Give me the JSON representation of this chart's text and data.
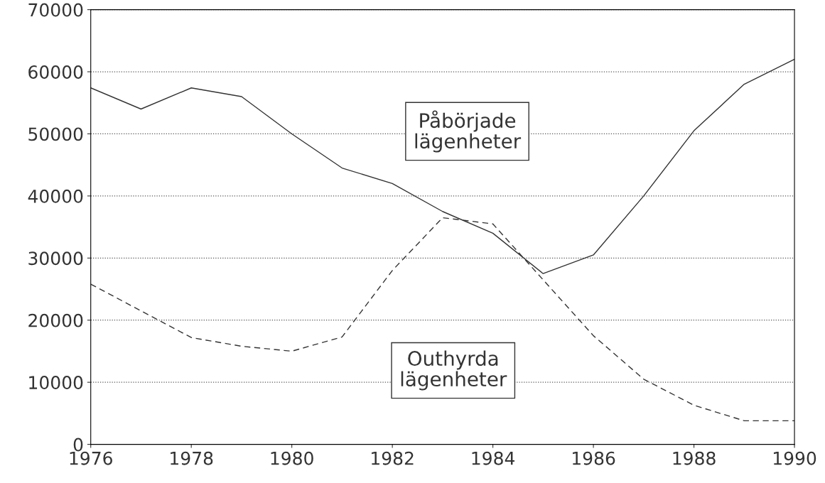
{
  "chart_data": {
    "type": "line",
    "x": [
      1976,
      1977,
      1978,
      1979,
      1980,
      1981,
      1982,
      1983,
      1984,
      1985,
      1986,
      1987,
      1988,
      1989,
      1990
    ],
    "series": [
      {
        "name": "Påbörjade\nlägenheter",
        "color": "#333333",
        "line_style": "solid",
        "values": [
          57400,
          54000,
          57400,
          56000,
          50000,
          44500,
          42000,
          37500,
          34000,
          27500,
          30500,
          40000,
          50500,
          58000,
          62000
        ]
      },
      {
        "name": "Outhyrda\nlägenheter",
        "color": "#333333",
        "line_style": "dashed",
        "values": [
          25800,
          21500,
          17200,
          15800,
          15000,
          17300,
          28000,
          36500,
          35500,
          26500,
          17500,
          10500,
          6300,
          3800,
          3800
        ]
      }
    ],
    "xlim": [
      1976,
      1990
    ],
    "xticks": [
      1976,
      1978,
      1980,
      1982,
      1984,
      1986,
      1988,
      1990
    ],
    "ylim": [
      0,
      70000
    ],
    "yticks": [
      0,
      10000,
      20000,
      30000,
      40000,
      50000,
      60000,
      70000
    ],
    "grid": "y",
    "marker": "none",
    "legend": false
  }
}
